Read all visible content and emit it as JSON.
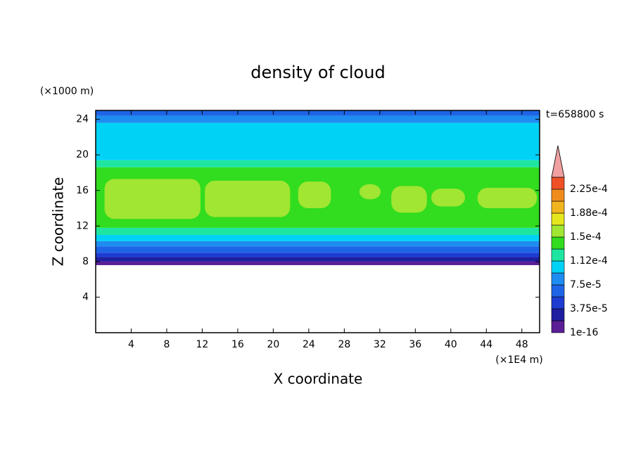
{
  "chart_data": {
    "type": "contour",
    "title": "density of cloud",
    "xlabel": "X coordinate",
    "ylabel": "Z coordinate",
    "x_unit": "(×1E4 m)",
    "y_unit": "(×1000 m)",
    "annotation": "t=658800 s",
    "xlim": [
      0,
      50
    ],
    "ylim": [
      0,
      25
    ],
    "xticks": [
      4,
      8,
      12,
      16,
      20,
      24,
      28,
      32,
      36,
      40,
      44,
      48
    ],
    "yticks": [
      4,
      8,
      12,
      16,
      20,
      24
    ],
    "profile": {
      "z_bins": [
        7.6,
        8.0,
        8.5,
        9.0,
        9.7,
        10.3,
        11.0,
        11.8,
        18.6,
        19.4,
        23.6,
        24.4,
        25
      ],
      "values": [
        1e-05,
        2.5e-05,
        4.5e-05,
        6.5e-05,
        8.5e-05,
        0.0001,
        0.00012,
        0.00014,
        0.00012,
        0.0001,
        8.5e-05,
        7e-05
      ]
    },
    "regions": [
      {
        "x": [
          1.0,
          11.8
        ],
        "z": [
          12.8,
          17.3
        ],
        "value": 0.000155
      },
      {
        "x": [
          12.3,
          21.9
        ],
        "z": [
          13.0,
          17.1
        ],
        "value": 0.000155
      },
      {
        "x": [
          22.8,
          26.5
        ],
        "z": [
          14.0,
          17.0
        ],
        "value": 0.000155
      },
      {
        "x": [
          29.7,
          32.1
        ],
        "z": [
          15.0,
          16.7
        ],
        "value": 0.000155
      },
      {
        "x": [
          33.3,
          37.3
        ],
        "z": [
          13.5,
          16.5
        ],
        "value": 0.000155
      },
      {
        "x": [
          37.8,
          41.6
        ],
        "z": [
          14.2,
          16.2
        ],
        "value": 0.000155
      },
      {
        "x": [
          43.0,
          49.7
        ],
        "z": [
          14.0,
          16.3
        ],
        "value": 0.000155
      }
    ],
    "colorbar": {
      "levels": [
        1e-16,
        1.875e-05,
        3.75e-05,
        5.625e-05,
        7.5e-05,
        9.375e-05,
        0.0001125,
        0.00013125,
        0.00015,
        0.00016875,
        0.0001875,
        0.00020625,
        0.000225
      ],
      "colors": [
        "#5a1e96",
        "#1e1ea0",
        "#1e3cd2",
        "#1e64e6",
        "#1e8cf0",
        "#00d2f5",
        "#1ee6a0",
        "#32dc1e",
        "#a0e632",
        "#e6e61e",
        "#f0b41e",
        "#f08c1e",
        "#f05028"
      ],
      "extend_color": "#f0a0a0",
      "ticks": [
        {
          "value": 1e-16,
          "label": "1e-16"
        },
        {
          "value": 3.75e-05,
          "label": "3.75e-5"
        },
        {
          "value": 7.5e-05,
          "label": "7.5e-5"
        },
        {
          "value": 0.0001125,
          "label": "1.12e-4"
        },
        {
          "value": 0.00015,
          "label": "1.5e-4"
        },
        {
          "value": 0.0001875,
          "label": "1.88e-4"
        },
        {
          "value": 0.000225,
          "label": "2.25e-4"
        }
      ]
    }
  }
}
